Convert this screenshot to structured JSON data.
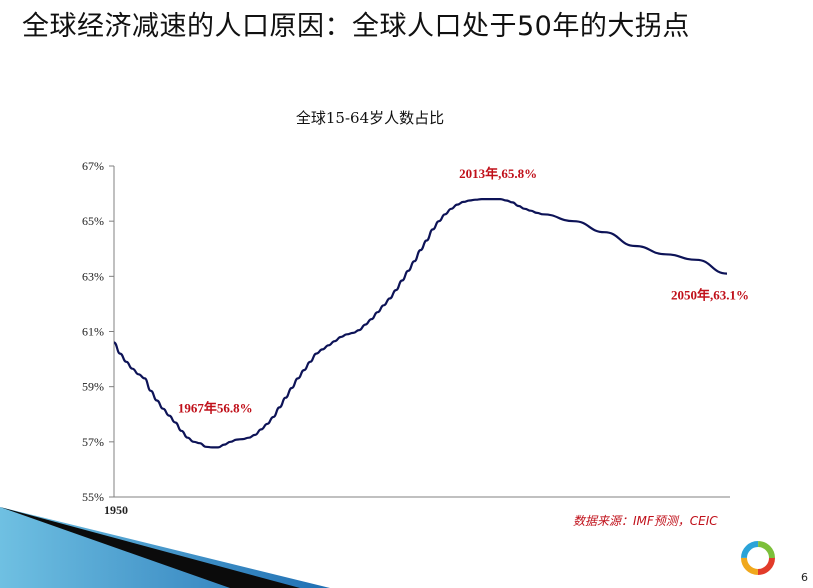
{
  "slide": {
    "title": "全球经济减速的人口原因：全球人口处于50年的大拐点",
    "source": "数据来源：IMF预测，CEIC",
    "page_number": "6"
  },
  "colors": {
    "line": "#0d1357",
    "annotation": "#c0101a",
    "axis": "#808080"
  },
  "chart_data": {
    "type": "line",
    "title": "全球15-64岁人数占比",
    "xlabel": "",
    "ylabel": "",
    "x_tick_labels": [
      {
        "x": 1950,
        "label": "1950"
      }
    ],
    "xlim": [
      1950,
      2050
    ],
    "ylim": [
      55,
      67
    ],
    "y_ticks": [
      55,
      57,
      59,
      61,
      63,
      65,
      67
    ],
    "y_tick_labels": [
      "55%",
      "57%",
      "59%",
      "61%",
      "63%",
      "65%",
      "67%"
    ],
    "grid": false,
    "legend": "none",
    "series": [
      {
        "x": [
          1950,
          1951,
          1952,
          1953,
          1954,
          1955,
          1956,
          1957,
          1958,
          1959,
          1960,
          1961,
          1962,
          1963,
          1964,
          1965,
          1966,
          1967,
          1968,
          1969,
          1970,
          1971,
          1972,
          1973,
          1974,
          1975,
          1976,
          1977,
          1978,
          1979,
          1980,
          1981,
          1982,
          1983,
          1984,
          1985,
          1986,
          1987,
          1988,
          1989,
          1990,
          1991,
          1992,
          1993,
          1994,
          1995,
          1996,
          1997,
          1998,
          1999,
          2000,
          2001,
          2002,
          2003,
          2004,
          2005,
          2006,
          2007,
          2008,
          2009,
          2010,
          2011,
          2012,
          2013,
          2014,
          2015,
          2016,
          2017,
          2018,
          2019,
          2020,
          2025,
          2030,
          2035,
          2040,
          2045,
          2050
        ],
        "y": [
          60.6,
          60.2,
          59.9,
          59.65,
          59.45,
          59.3,
          58.85,
          58.5,
          58.2,
          57.95,
          57.7,
          57.4,
          57.15,
          57.0,
          56.95,
          56.82,
          56.8,
          56.8,
          56.9,
          57.0,
          57.08,
          57.1,
          57.15,
          57.25,
          57.45,
          57.65,
          57.9,
          58.25,
          58.6,
          58.95,
          59.3,
          59.6,
          59.9,
          60.2,
          60.35,
          60.5,
          60.65,
          60.8,
          60.9,
          60.95,
          61.05,
          61.25,
          61.45,
          61.7,
          61.95,
          62.2,
          62.5,
          62.85,
          63.2,
          63.55,
          63.95,
          64.3,
          64.7,
          65.0,
          65.25,
          65.45,
          65.6,
          65.7,
          65.75,
          65.78,
          65.8,
          65.8,
          65.8,
          65.8,
          65.75,
          65.68,
          65.55,
          65.45,
          65.38,
          65.3,
          65.25,
          65.0,
          64.6,
          64.1,
          63.8,
          63.6,
          63.1
        ]
      }
    ],
    "annotations": [
      {
        "x": 1967,
        "y": 56.8,
        "label": "1967年56.8%"
      },
      {
        "x": 2013,
        "y": 65.8,
        "label": "2013年,65.8%"
      },
      {
        "x": 2050,
        "y": 63.1,
        "label": "2050年,63.1%"
      }
    ]
  }
}
